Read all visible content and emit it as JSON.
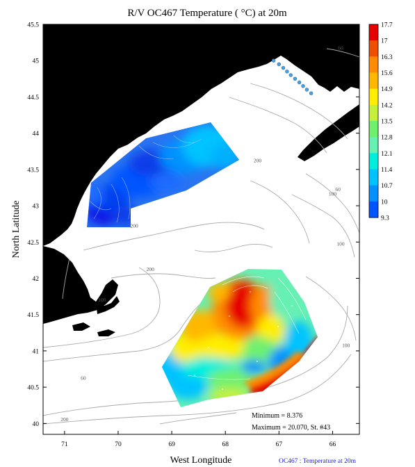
{
  "chart_data": {
    "type": "heatmap",
    "title": "R/V OC467 Temperature ( °C) at 20m",
    "xlabel": "West Longitude",
    "ylabel": "North Latitude",
    "x_ticks": [
      71,
      70,
      69,
      68,
      67,
      66
    ],
    "y_ticks": [
      40,
      40.5,
      41,
      41.5,
      42,
      42.5,
      43,
      43.5,
      44,
      44.5,
      45,
      45.5
    ],
    "xlim": [
      71.4,
      65.5
    ],
    "ylim": [
      39.85,
      45.5
    ],
    "colorbar": {
      "labels": [
        "17.7",
        "17",
        "16.3",
        "15.6",
        "14.9",
        "14.2",
        "13.5",
        "12.8",
        "12.1",
        "11.4",
        "10.7",
        "10",
        "9.3"
      ],
      "colors": [
        "#e60000",
        "#f04e00",
        "#ff8c00",
        "#ffb800",
        "#ffee00",
        "#c4f03c",
        "#6ef06e",
        "#66f0b4",
        "#00eedd",
        "#00c3ff",
        "#0091ff",
        "#0055ff",
        "#0a14e6"
      ]
    },
    "bathymetry_labels": [
      {
        "text": "60",
        "lon": 65.85,
        "lat": 45.15
      },
      {
        "text": "200",
        "lon": 67.4,
        "lat": 43.6
      },
      {
        "text": "60",
        "lon": 65.9,
        "lat": 43.2
      },
      {
        "text": "100",
        "lon": 66.0,
        "lat": 43.14
      },
      {
        "text": "200",
        "lon": 69.7,
        "lat": 42.7
      },
      {
        "text": "100",
        "lon": 65.85,
        "lat": 42.45
      },
      {
        "text": "200",
        "lon": 69.4,
        "lat": 42.1
      },
      {
        "text": "100",
        "lon": 70.3,
        "lat": 41.68
      },
      {
        "text": "60",
        "lon": 70.65,
        "lat": 40.6
      },
      {
        "text": "200",
        "lon": 71.0,
        "lat": 40.03
      },
      {
        "text": "100",
        "lon": 65.75,
        "lat": 41.05
      }
    ],
    "stations_lonlat": [
      [
        67.1,
        45.0
      ],
      [
        67.0,
        44.95
      ],
      [
        66.92,
        44.9
      ],
      [
        66.85,
        44.85
      ],
      [
        66.78,
        44.8
      ],
      [
        66.7,
        44.75
      ],
      [
        66.62,
        44.7
      ],
      [
        66.55,
        44.65
      ],
      [
        66.48,
        44.6
      ],
      [
        66.4,
        44.55
      ]
    ],
    "minimum_text": "Minimum = 8.376",
    "maximum_text": "Maximum = 20.070, St. #43"
  },
  "footer": "OC467 : Temperature at 20m",
  "colors": {
    "land": "#cfcfa8",
    "depth_contour": "#a8a8a8",
    "frame": "#000000",
    "station_fill": "#4aa0e0"
  }
}
